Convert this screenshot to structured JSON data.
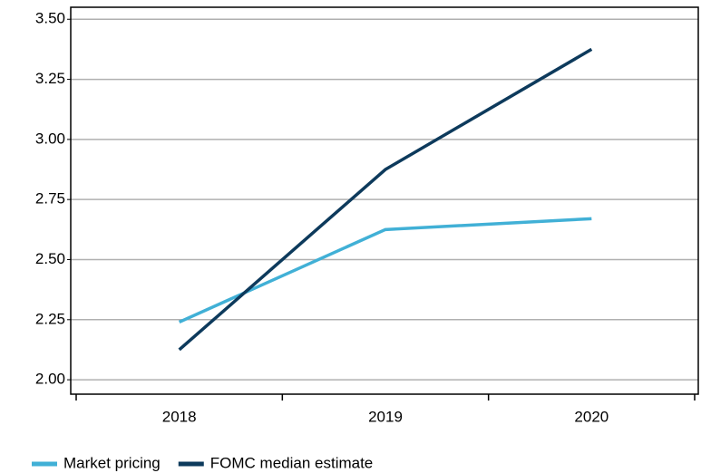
{
  "chart_data": {
    "type": "line",
    "categories": [
      "2018",
      "2019",
      "2020"
    ],
    "series": [
      {
        "name": "Market pricing",
        "color": "#41b0d6",
        "values": [
          2.24,
          2.625,
          2.67
        ]
      },
      {
        "name": "FOMC median estimate",
        "color": "#0d3a5c",
        "values": [
          2.125,
          2.875,
          3.375
        ]
      }
    ],
    "ylim": [
      1.94,
      3.55
    ],
    "yticks": [
      {
        "value": 2,
        "label": "2.00"
      },
      {
        "value": 2.25,
        "label": "2.25"
      },
      {
        "value": 2.5,
        "label": "2.50"
      },
      {
        "value": 2.75,
        "label": "2.75"
      },
      {
        "value": 3,
        "label": "3.00"
      },
      {
        "value": 3.25,
        "label": "3.25"
      },
      {
        "value": 3.5,
        "label": "3.50"
      }
    ],
    "grid": true,
    "legend": "bottom-left"
  }
}
